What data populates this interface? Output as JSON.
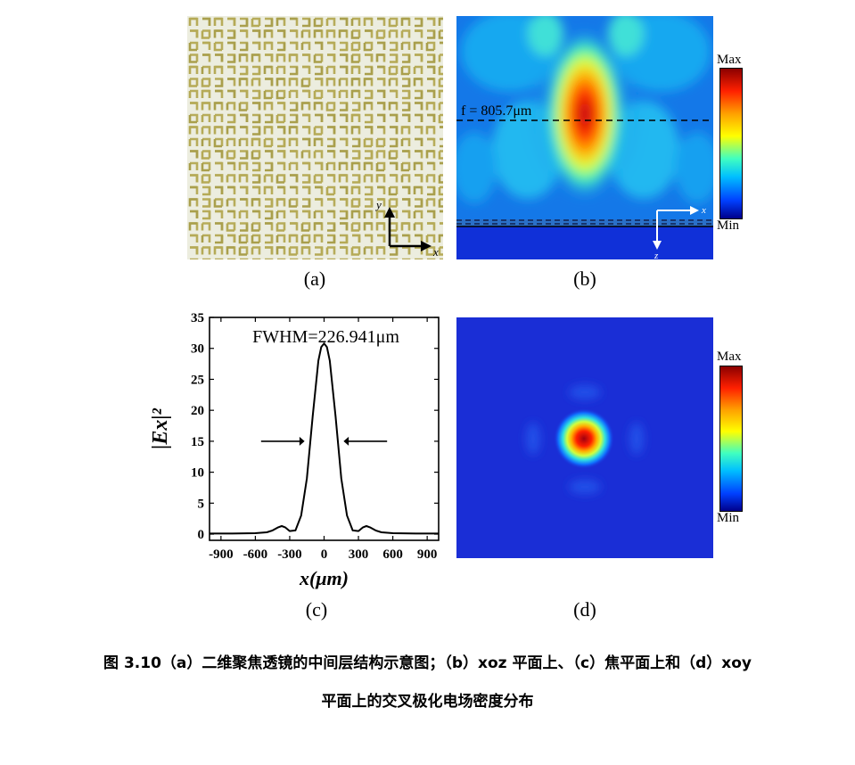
{
  "panels": {
    "a": {
      "label": "(a)",
      "axis_x": "x",
      "axis_y": "y"
    },
    "b": {
      "label": "(b)",
      "focal_annotation": "f = 805.7μm",
      "colorbar_max": "Max",
      "colorbar_min": "Min",
      "axis_x": "x",
      "axis_z": "z"
    },
    "c": {
      "label": "(c)",
      "annotation": "FWHM=226.941μm"
    },
    "d": {
      "label": "(d)",
      "colorbar_max": "Max",
      "colorbar_min": "Min"
    }
  },
  "chart_data": {
    "type": "line",
    "title": "",
    "xlabel": "x(μm)",
    "ylabel": "|Ex|²",
    "xlim": [
      -1000,
      1000
    ],
    "ylim": [
      -1,
      35
    ],
    "xticks": [
      -900,
      -600,
      -300,
      0,
      300,
      600,
      900
    ],
    "yticks": [
      0,
      5,
      10,
      15,
      20,
      25,
      30,
      35
    ],
    "series": [
      {
        "x": [
          -1000,
          -800,
          -600,
          -500,
          -450,
          -400,
          -370,
          -340,
          -300,
          -250,
          -200,
          -150,
          -100,
          -50,
          -25,
          0,
          25,
          50,
          100,
          150,
          200,
          250,
          300,
          340,
          370,
          400,
          450,
          500,
          600,
          800,
          1000
        ],
        "y": [
          0.1,
          0.1,
          0.15,
          0.3,
          0.6,
          1.1,
          1.3,
          1.1,
          0.5,
          0.6,
          3,
          9,
          19,
          28,
          30.2,
          30.8,
          30.2,
          28,
          19,
          9,
          3,
          0.6,
          0.5,
          1.1,
          1.3,
          1.1,
          0.6,
          0.3,
          0.15,
          0.1,
          0.1
        ]
      }
    ]
  },
  "caption": {
    "line1": "图 3.10（a）二维聚焦透镜的中间层结构示意图；（b）xoz 平面上、（c）焦平面上和（d）xoy",
    "line2": "平面上的交叉极化电场密度分布"
  }
}
